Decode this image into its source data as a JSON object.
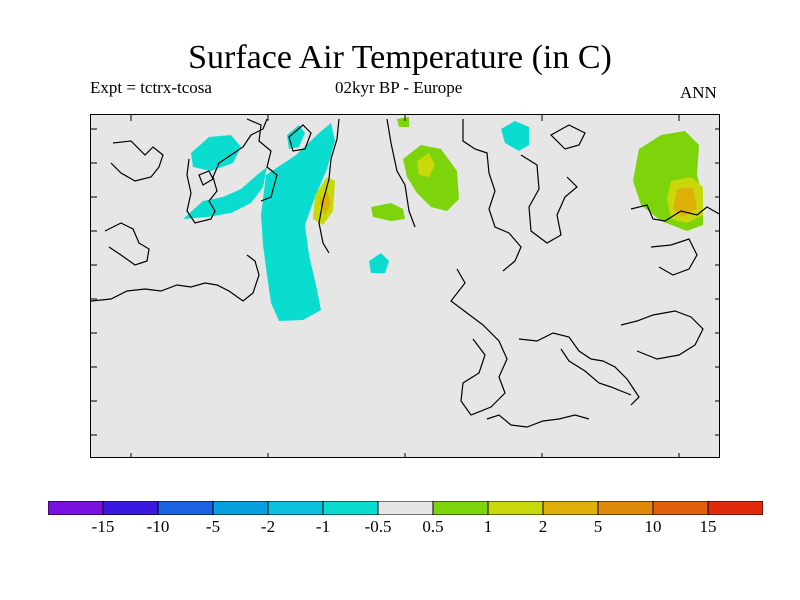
{
  "title": "Surface Air Temperature (in C)",
  "experiment": "Expt = tctrx-tcosa",
  "period_region": "02kyr BP - Europe",
  "season": "ANN",
  "colorbar": {
    "labels": [
      "-15",
      "-10",
      "-5",
      "-2",
      "-1",
      "-0.5",
      "0.5",
      "1",
      "2",
      "5",
      "10",
      "15"
    ],
    "colors": [
      "#7a10e0",
      "#3b18e0",
      "#1a62e0",
      "#0aa0e0",
      "#0ac2e0",
      "#0addd0",
      "#e6e6e6",
      "#7ed40a",
      "#c8d80a",
      "#e0b00a",
      "#e08a0a",
      "#e0600a",
      "#e02a0a"
    ]
  },
  "legend_colors": {
    "land_background": "#e6e6e6",
    "cool_anomaly": "#0addd0",
    "warm_anomaly": "#7ed40a",
    "warm_anomaly_2": "#c8d80a",
    "warm_anomaly_3": "#e0b00a"
  }
}
